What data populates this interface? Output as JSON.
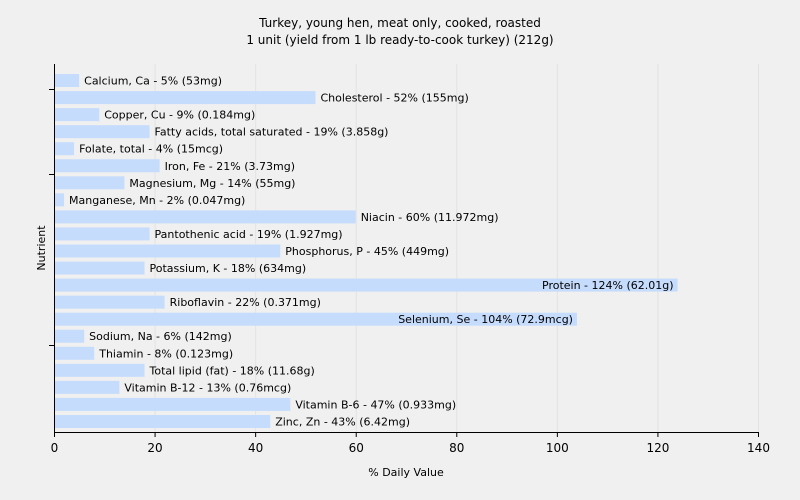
{
  "chart_data": {
    "type": "bar",
    "orientation": "horizontal",
    "title": "Turkey, young hen, meat only, cooked, roasted",
    "subtitle": "1 unit (yield from 1 lb ready-to-cook turkey) (212g)",
    "xlabel": "% Daily Value",
    "ylabel": "Nutrient",
    "xlim": [
      0,
      140
    ],
    "xticks": [
      0,
      20,
      40,
      60,
      80,
      100,
      120,
      140
    ],
    "grid": true,
    "bar_color": "#c6dcfc",
    "categories": [
      "Calcium, Ca",
      "Cholesterol",
      "Copper, Cu",
      "Fatty acids, total saturated",
      "Folate, total",
      "Iron, Fe",
      "Magnesium, Mg",
      "Manganese, Mn",
      "Niacin",
      "Pantothenic acid",
      "Phosphorus, P",
      "Potassium, K",
      "Protein",
      "Riboflavin",
      "Selenium, Se",
      "Sodium, Na",
      "Thiamin",
      "Total lipid (fat)",
      "Vitamin B-12",
      "Vitamin B-6",
      "Zinc, Zn"
    ],
    "values": [
      5,
      52,
      9,
      19,
      4,
      21,
      14,
      2,
      60,
      19,
      45,
      18,
      124,
      22,
      104,
      6,
      8,
      18,
      13,
      47,
      43
    ],
    "labels": [
      "Calcium, Ca - 5% (53mg)",
      "Cholesterol - 52% (155mg)",
      "Copper, Cu - 9% (0.184mg)",
      "Fatty acids, total saturated - 19% (3.858g)",
      "Folate, total - 4% (15mcg)",
      "Iron, Fe - 21% (3.73mg)",
      "Magnesium, Mg - 14% (55mg)",
      "Manganese, Mn - 2% (0.047mg)",
      "Niacin - 60% (11.972mg)",
      "Pantothenic acid - 19% (1.927mg)",
      "Phosphorus, P - 45% (449mg)",
      "Potassium, K - 18% (634mg)",
      "Protein - 124% (62.01g)",
      "Riboflavin - 22% (0.371mg)",
      "Selenium, Se - 104% (72.9mcg)",
      "Sodium, Na - 6% (142mg)",
      "Thiamin - 8% (0.123mg)",
      "Total lipid (fat) - 18% (11.68g)",
      "Vitamin B-12 - 13% (0.76mcg)",
      "Vitamin B-6 - 47% (0.933mg)",
      "Zinc, Zn - 43% (6.42mg)"
    ]
  }
}
